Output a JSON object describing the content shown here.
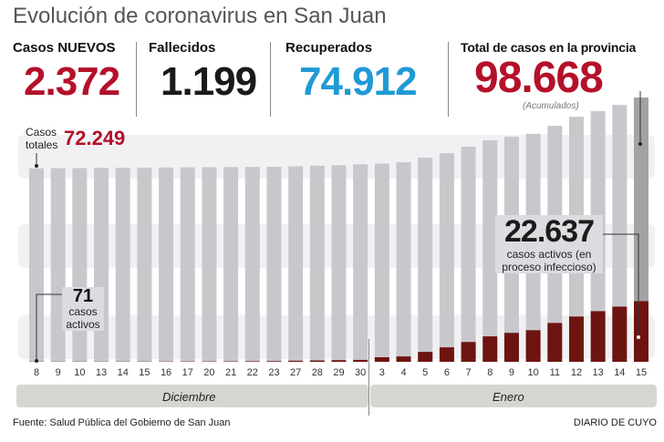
{
  "header": {
    "title": "Evolución de coronavirus en San Juan"
  },
  "kpis": [
    {
      "label": "Casos NUEVOS",
      "value": "2.372",
      "color": "#b5102a"
    },
    {
      "label": "Fallecidos",
      "value": "1.199",
      "color": "#1a1a1a"
    },
    {
      "label": "Recuperados",
      "value": "74.912",
      "color": "#1f9ad6"
    },
    {
      "label": "Total de casos en la provincia",
      "value": "98.668",
      "color": "#b5102a",
      "note": "(Acumulados)"
    }
  ],
  "annotations": {
    "total_label": "Casos totales",
    "total_value": "72.249",
    "active_start_value": "71",
    "active_start_label": "casos activos",
    "active_end_value": "22.637",
    "active_end_label": "casos activos (en proceso infeccioso)"
  },
  "footer": {
    "source": "Fuente: Salud Pública del Gobierno de San Juan",
    "brand": "DIARIO DE CUYO"
  },
  "chart_data": {
    "type": "bar",
    "categories": [
      "8",
      "9",
      "10",
      "13",
      "14",
      "15",
      "16",
      "17",
      "20",
      "21",
      "22",
      "23",
      "27",
      "28",
      "29",
      "30",
      "3",
      "4",
      "5",
      "6",
      "7",
      "8",
      "9",
      "10",
      "11",
      "12",
      "13",
      "14",
      "15"
    ],
    "months": [
      "Diciembre",
      "Enero"
    ],
    "series": [
      {
        "name": "Casos totales",
        "color": "#c8c8cc",
        "values": [
          72249,
          72300,
          72340,
          72400,
          72450,
          72500,
          72550,
          72600,
          72650,
          72700,
          72750,
          72800,
          73000,
          73200,
          73400,
          73700,
          74000,
          74500,
          76200,
          77900,
          80300,
          82700,
          84000,
          85100,
          88100,
          91500,
          93600,
          95900,
          98668
        ]
      },
      {
        "name": "casos activos",
        "color": "#6e1410",
        "values": [
          71,
          71,
          72,
          75,
          80,
          90,
          100,
          110,
          130,
          150,
          200,
          250,
          400,
          500,
          600,
          700,
          1700,
          2000,
          3700,
          5400,
          7400,
          9500,
          10800,
          11800,
          14500,
          16900,
          18900,
          20600,
          22637
        ]
      }
    ],
    "ylim": [
      0,
      98668
    ]
  }
}
